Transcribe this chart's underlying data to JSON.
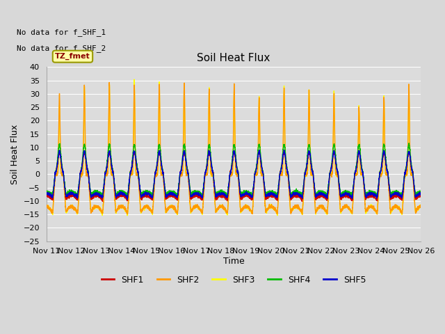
{
  "title": "Soil Heat Flux",
  "ylabel": "Soil Heat Flux",
  "xlabel": "Time",
  "ylim": [
    -25,
    40
  ],
  "yticks": [
    -25,
    -20,
    -15,
    -10,
    -5,
    0,
    5,
    10,
    15,
    20,
    25,
    30,
    35,
    40
  ],
  "xtick_labels": [
    "Nov 11",
    "Nov 12",
    "Nov 13",
    "Nov 14",
    "Nov 15",
    "Nov 16",
    "Nov 17",
    "Nov 18",
    "Nov 19",
    "Nov 20",
    "Nov 21",
    "Nov 22",
    "Nov 23",
    "Nov 24",
    "Nov 25",
    "Nov 26"
  ],
  "no_data_text_1": "No data for f_SHF_1",
  "no_data_text_2": "No data for f_SHF_2",
  "tz_label": "TZ_fmet",
  "legend_entries": [
    "SHF1",
    "SHF2",
    "SHF3",
    "SHF4",
    "SHF5"
  ],
  "line_colors": [
    "#cc0000",
    "#ff9900",
    "#ffff00",
    "#00bb00",
    "#0000cc"
  ],
  "background_color": "#d8d8d8",
  "plot_bg_color": "#dcdcdc",
  "grid_color": "#ffffff",
  "n_days": 15,
  "points_per_day": 288
}
